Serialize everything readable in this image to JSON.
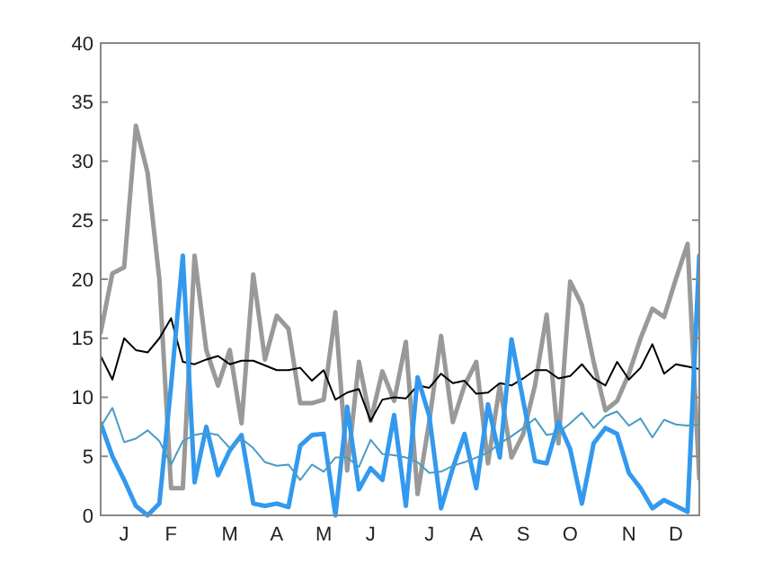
{
  "chart_data": {
    "type": "line",
    "categories": [
      null,
      null,
      "J",
      null,
      null,
      null,
      "F",
      null,
      null,
      null,
      null,
      "M",
      null,
      null,
      null,
      "A",
      null,
      null,
      null,
      "M",
      null,
      null,
      null,
      "J",
      null,
      null,
      null,
      null,
      "J",
      null,
      null,
      null,
      "A",
      null,
      null,
      null,
      "S",
      null,
      null,
      null,
      "O",
      null,
      null,
      null,
      null,
      "N",
      null,
      null,
      null,
      "D",
      null,
      null
    ],
    "series": [
      {
        "color": "#999999",
        "values": [
          15.5,
          20.5,
          21,
          33,
          29,
          20,
          2.3,
          2.3,
          22,
          14,
          11,
          14,
          7.8,
          20.4,
          13.2,
          16.9,
          15.8,
          9.5,
          9.5,
          9.8,
          17.2,
          3.8,
          13,
          8,
          12.2,
          9.7,
          14.7,
          1.8,
          8,
          15.2,
          7.9,
          11,
          13,
          4.4,
          11,
          4.9,
          6.9,
          11,
          17,
          6.1,
          19.8,
          17.8,
          13,
          8.9,
          9.7,
          12,
          15,
          17.5,
          16.8,
          20,
          23,
          3.1
        ]
      },
      {
        "color": "#000000",
        "values": [
          13.5,
          11.5,
          15,
          14,
          13.8,
          15,
          16.7,
          13,
          12.8,
          13.2,
          13.5,
          12.8,
          13.1,
          13.1,
          12.7,
          12.3,
          12.3,
          12.5,
          11.4,
          12.3,
          9.8,
          10.4,
          10.7,
          8,
          9.8,
          10,
          9.9,
          11,
          10.8,
          12,
          11.2,
          11.4,
          10.3,
          10.4,
          11.2,
          11,
          11.6,
          12.3,
          12.3,
          11.6,
          11.8,
          12.8,
          11.6,
          11,
          13,
          11.5,
          12.5,
          14.5,
          12,
          12.8,
          12.6,
          12.4
        ]
      },
      {
        "color": "#3399ee",
        "values": [
          7.8,
          5,
          3,
          0.8,
          0,
          1,
          11,
          22,
          2.8,
          7.5,
          3.4,
          5.5,
          6.8,
          1,
          0.8,
          1,
          0.7,
          5.9,
          6.8,
          6.9,
          0,
          9.2,
          2.2,
          4,
          3,
          8.5,
          0.8,
          11.7,
          8.4,
          0.6,
          4,
          6.9,
          2.3,
          9.4,
          4.9,
          14.9,
          9.7,
          4.6,
          4.4,
          7.9,
          5.6,
          1,
          6.1,
          7.4,
          6.9,
          3.6,
          2.3,
          0.6,
          1.3,
          0.8,
          0.3,
          22
        ]
      },
      {
        "color": "#4a9cc4",
        "values": [
          7.5,
          9.1,
          6.2,
          6.5,
          7.2,
          6.3,
          4.3,
          6.3,
          6.8,
          7,
          6.8,
          5.7,
          6.5,
          5.7,
          4.5,
          4.2,
          4.3,
          3,
          4.3,
          3.7,
          4.9,
          4.9,
          4.1,
          6.4,
          5.2,
          5.1,
          4.9,
          4.5,
          3.6,
          3.7,
          4.2,
          4.5,
          4.9,
          5.3,
          6.1,
          6.7,
          7.4,
          8.2,
          6.8,
          7,
          7.8,
          8.7,
          7.4,
          8.4,
          8.8,
          7.6,
          8.2,
          6.6,
          8.1,
          7.7,
          7.6,
          7.7
        ]
      }
    ],
    "ylim": [
      0,
      40
    ],
    "yticks": [
      0,
      5,
      10,
      15,
      20,
      25,
      30,
      35,
      40
    ],
    "grid": false,
    "marker": "none",
    "line_style": "solid"
  }
}
